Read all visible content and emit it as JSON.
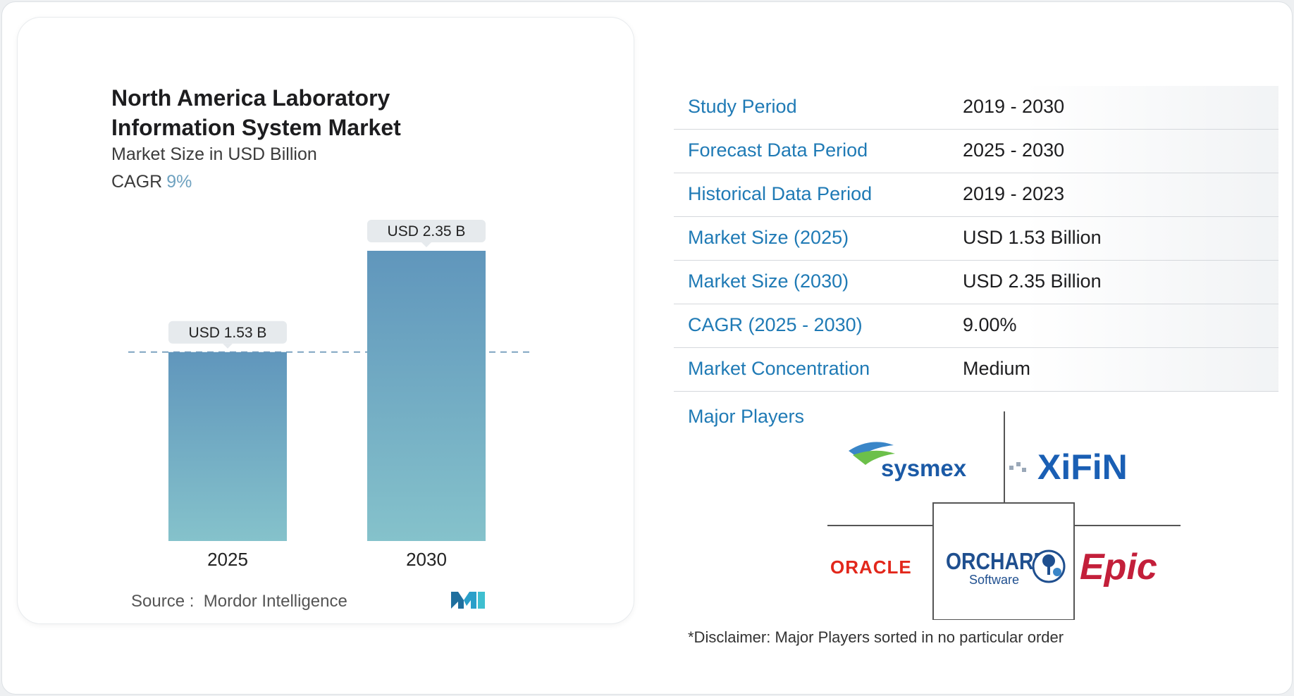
{
  "chart_data": {
    "type": "bar",
    "title": "North America Laboratory Information System Market",
    "subtitle": "Market Size in USD Billion",
    "cagr_label": "CAGR",
    "cagr_value": "9%",
    "categories": [
      "2025",
      "2030"
    ],
    "values": [
      1.53,
      2.35
    ],
    "value_labels": [
      "USD 1.53 B",
      "USD 2.35 B"
    ],
    "ylim": [
      0,
      2.35
    ],
    "grid": false,
    "reference_line": "dashed line at 2025 value",
    "colors": {
      "bar_top": "#6096bc",
      "bar_bottom": "#85c2cb",
      "dash": "#7ea4c1",
      "label_bg": "#e6eaed"
    }
  },
  "source": {
    "label": "Source :",
    "name": "Mordor Intelligence"
  },
  "logo": {
    "icon": "mordor-intelligence-logo",
    "color": "#2a9fc9"
  },
  "table": [
    {
      "label": "Study Period",
      "value": "2019 - 2030"
    },
    {
      "label": "Forecast Data Period",
      "value": "2025 - 2030"
    },
    {
      "label": "Historical Data Period",
      "value": "2019 - 2023"
    },
    {
      "label": "Market Size (2025)",
      "value": "USD 1.53 Billion"
    },
    {
      "label": "Market Size (2030)",
      "value": "USD 2.35 Billion"
    },
    {
      "label": "CAGR (2025 - 2030)",
      "value": "9.00%"
    },
    {
      "label": "Market Concentration",
      "value": "Medium"
    }
  ],
  "major_players": {
    "label": "Major Players",
    "logos": [
      {
        "name": "sysmex",
        "text": "sysmex",
        "color": "#1b5aa6"
      },
      {
        "name": "xifin",
        "text": "XiFiN",
        "color": "#1a5fb4"
      },
      {
        "name": "oracle",
        "text": "ORACLE",
        "color": "#e2271b"
      },
      {
        "name": "orchard",
        "text": "ORCHARD",
        "subtext": "Software",
        "color": "#1f4f8f"
      },
      {
        "name": "epic",
        "text": "Epic",
        "color": "#c31f3a"
      }
    ]
  },
  "disclaimer": "*Disclaimer: Major Players sorted in no particular order"
}
